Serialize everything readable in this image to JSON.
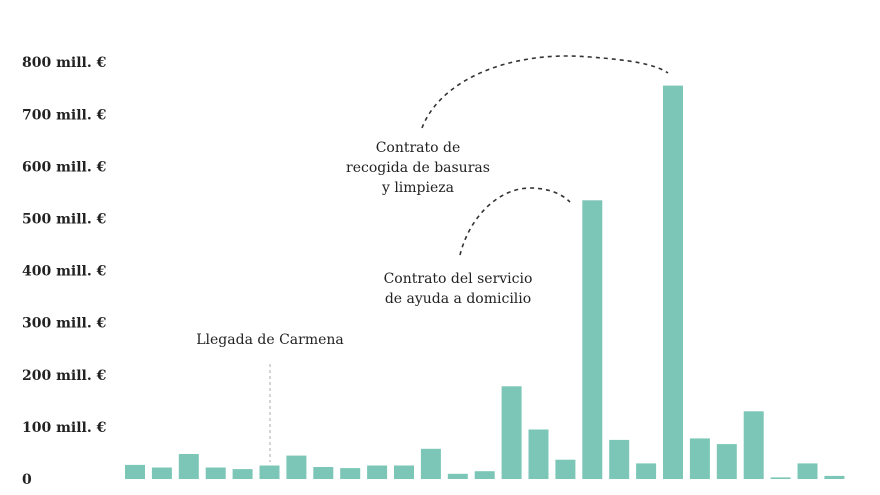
{
  "chart_data": {
    "type": "bar",
    "ylim": [
      0,
      830
    ],
    "yticks": [
      {
        "value": 0,
        "label": "0"
      },
      {
        "value": 100,
        "label": "100 mill. €"
      },
      {
        "value": 200,
        "label": "200 mill. €"
      },
      {
        "value": 300,
        "label": "300 mill. €"
      },
      {
        "value": 400,
        "label": "400 mill. €"
      },
      {
        "value": 500,
        "label": "500 mill. €"
      },
      {
        "value": 600,
        "label": "600 mill. €"
      },
      {
        "value": 700,
        "label": "700 mill. €"
      },
      {
        "value": 800,
        "label": "800 mill. €"
      }
    ],
    "values": [
      27,
      22,
      48,
      22,
      19,
      26,
      45,
      23,
      21,
      26,
      26,
      58,
      10,
      15,
      178,
      95,
      37,
      535,
      75,
      30,
      755,
      78,
      67,
      130,
      3,
      30,
      6
    ],
    "color": "#7cc6b8",
    "annotations": {
      "carmena": "Llegada de Carmena",
      "basuras": [
        "Contrato de",
        "recogida de basuras",
        "y limpieza"
      ],
      "domicilio": [
        "Contrato del servicio",
        "de ayuda a domicilio"
      ]
    }
  }
}
